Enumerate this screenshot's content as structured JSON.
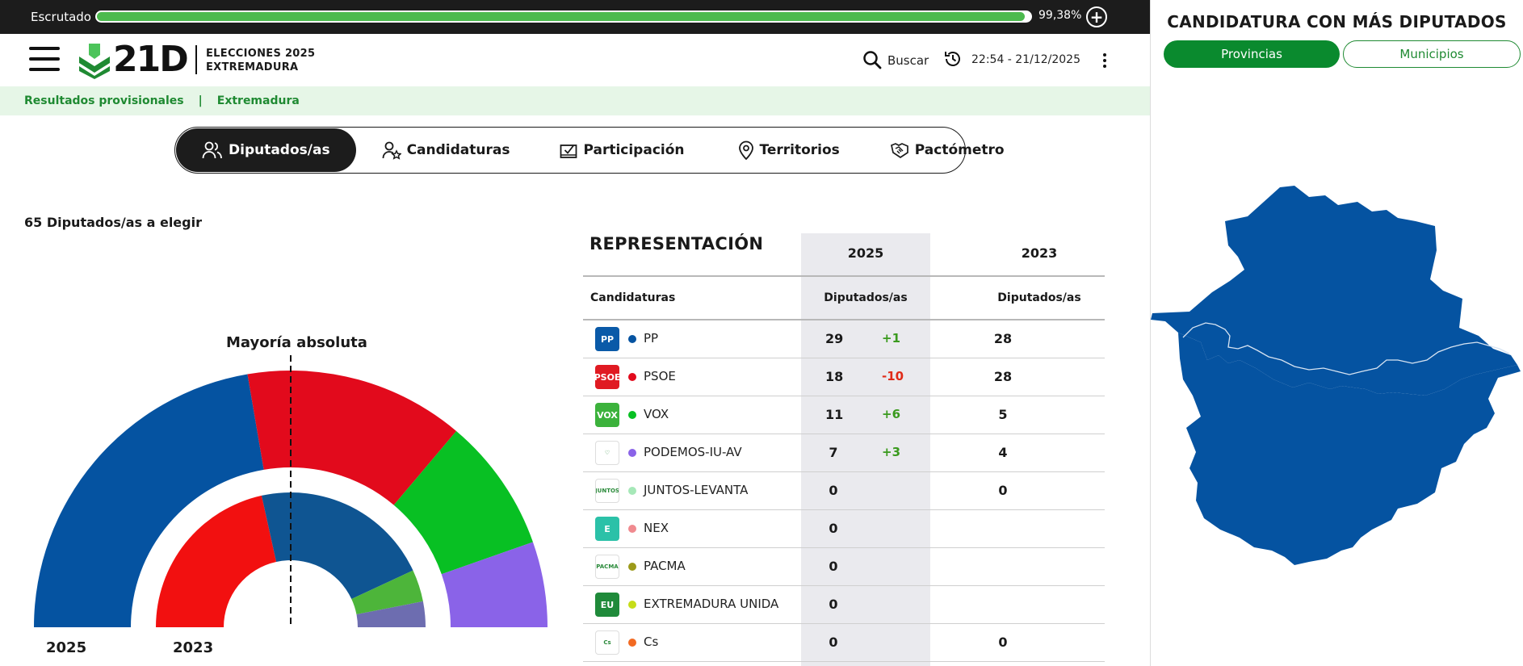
{
  "topbar": {
    "label": "Escrutado",
    "progress_percent": 99.38,
    "progress_text": "99,38%",
    "plus_icon": "plus-circle-icon"
  },
  "header": {
    "logo_text": "21D",
    "logo_sub_line1": "ELECCIONES 2025",
    "logo_sub_line2": "EXTREMADURA",
    "search_label": "Buscar",
    "timestamp": "22:54 - 21/12/2025"
  },
  "breadcrumb": {
    "item1": "Resultados provisionales",
    "separator": "|",
    "item2": "Extremadura"
  },
  "tabs": [
    {
      "label": "Diputados/as",
      "icon": "users-icon",
      "active": true
    },
    {
      "label": "Candidaturas",
      "icon": "user-star-icon",
      "active": false
    },
    {
      "label": "Participación",
      "icon": "ballot-icon",
      "active": false
    },
    {
      "label": "Territorios",
      "icon": "pin-icon",
      "active": false
    },
    {
      "label": "Pactómetro",
      "icon": "handshake-icon",
      "active": false
    }
  ],
  "chart": {
    "seats_to_elect": "65 Diputados/as a elegir",
    "majority_label": "Mayoría absoluta",
    "year_outer": "2025",
    "year_inner": "2023",
    "total_seats": 65
  },
  "chart_data": {
    "type": "pie",
    "title": "",
    "series": [
      {
        "name": "2025",
        "values": [
          29,
          18,
          11,
          7
        ],
        "colors": [
          "#0553a1",
          "#e20a1c",
          "#08c023",
          "#8a63e8"
        ]
      },
      {
        "name": "2023",
        "values": [
          28,
          28,
          5,
          4
        ],
        "colors": [
          "#f21010",
          "#0f5592",
          "#4db53a",
          "#6d6db0"
        ]
      }
    ],
    "categories": [
      "PP",
      "PSOE",
      "VOX",
      "PODEMOS-IU-AV"
    ],
    "majority": 33
  },
  "table": {
    "title": "REPRESENTACIÓN",
    "year_2025": "2025",
    "year_2023": "2023",
    "col_candidaturas": "Candidaturas",
    "col_diputados_2025": "Diputados/as",
    "col_diputados_2023": "Diputados/as",
    "rows": [
      {
        "name": "PP",
        "logo": "PP",
        "logo_bg": "#0a5aa8",
        "dot": "#0553a1",
        "v2025": "29",
        "delta": "+1",
        "delta_color": "#3a9a1e",
        "v2023": "28"
      },
      {
        "name": "PSOE",
        "logo": "PSOE",
        "logo_bg": "#e01a22",
        "dot": "#e20a1c",
        "v2025": "18",
        "delta": "-10",
        "delta_color": "#e02b18",
        "v2023": "28"
      },
      {
        "name": "VOX",
        "logo": "VOX",
        "logo_bg": "#3cb23c",
        "dot": "#08c023",
        "v2025": "11",
        "delta": "+6",
        "delta_color": "#3a9a1e",
        "v2023": "5"
      },
      {
        "name": "PODEMOS-IU-AV",
        "logo": "♡",
        "logo_bg": "#ffffff",
        "dot": "#8a63e8",
        "v2025": "7",
        "delta": "+3",
        "delta_color": "#3a9a1e",
        "v2023": "4"
      },
      {
        "name": "JUNTOS-LEVANTA",
        "logo": "JUNTOS",
        "logo_bg": "#ffffff",
        "dot": "#a6e8b8",
        "v2025": "0",
        "delta": "",
        "delta_color": "#3a9a1e",
        "v2023": "0"
      },
      {
        "name": "NEX",
        "logo": "E",
        "logo_bg": "#2bc1a8",
        "dot": "#f08a8f",
        "v2025": "0",
        "delta": "",
        "delta_color": "#3a9a1e",
        "v2023": ""
      },
      {
        "name": "PACMA",
        "logo": "PACMA",
        "logo_bg": "#ffffff",
        "dot": "#9c9a1a",
        "v2025": "0",
        "delta": "",
        "delta_color": "#3a9a1e",
        "v2023": ""
      },
      {
        "name": "EXTREMADURA UNIDA",
        "logo": "EU",
        "logo_bg": "#1f8a3a",
        "dot": "#c6dd18",
        "v2025": "0",
        "delta": "",
        "delta_color": "#3a9a1e",
        "v2023": ""
      },
      {
        "name": "Cs",
        "logo": "Cs",
        "logo_bg": "#ffffff",
        "dot": "#f26a22",
        "v2025": "0",
        "delta": "",
        "delta_color": "#3a9a1e",
        "v2023": "0"
      }
    ]
  },
  "right_panel": {
    "title": "CANDIDATURA CON MÁS DIPUTADOS",
    "btn_provincias": "Provincias",
    "btn_municipios": "Municipios",
    "map_color": "#0553a1"
  }
}
